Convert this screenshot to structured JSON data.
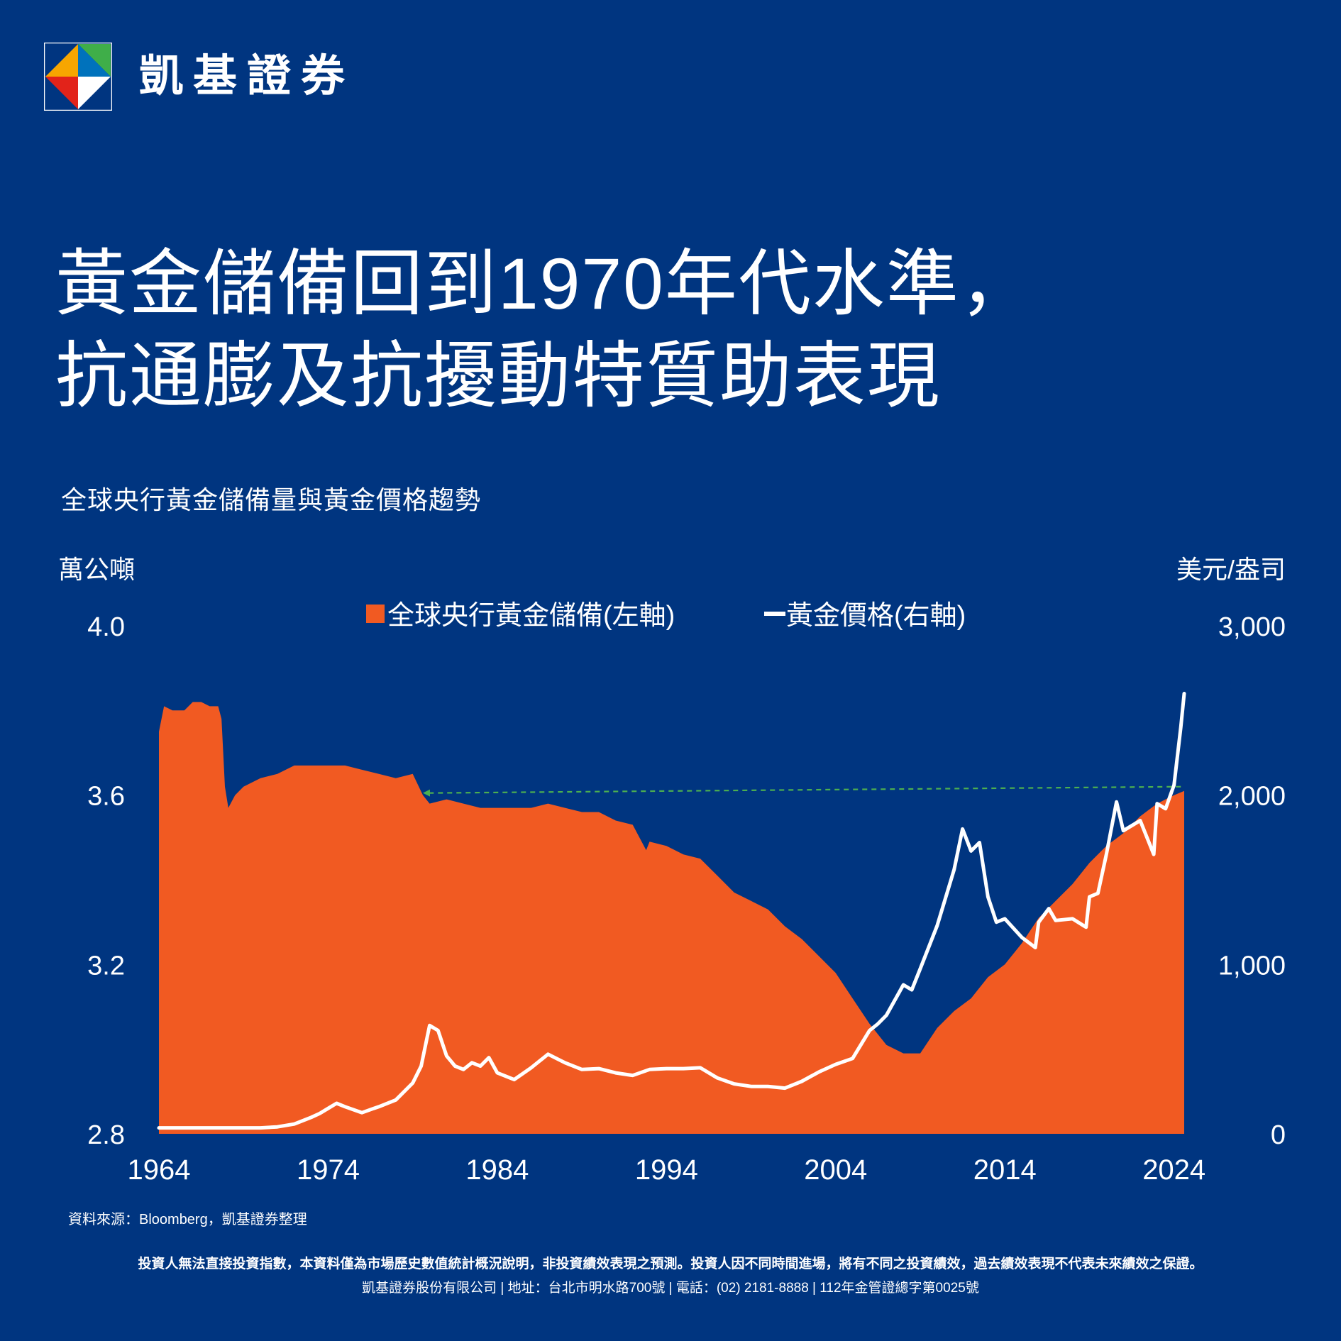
{
  "brand": {
    "name": "凱基證券",
    "logo_colors": [
      "#E2231A",
      "#F7A600",
      "#3FAE49",
      "#0072BC",
      "#FFFFFF"
    ]
  },
  "headline": {
    "line1": "黃金儲備回到1970年代水準，",
    "line2": "抗通膨及抗擾動特質助表現"
  },
  "chart_data": {
    "type": "area",
    "title": "全球央行黃金儲備量與黃金價格趨勢",
    "ylabel_left": "萬公噸",
    "ylabel_right": "美元/盎司",
    "ylim_left": [
      2.8,
      4.0
    ],
    "ylim_right": [
      0,
      3000
    ],
    "yticks_left": [
      "4.0",
      "3.6",
      "3.2",
      "2.8"
    ],
    "yticks_right": [
      "3,000",
      "2,000",
      "1,000",
      "0"
    ],
    "xlim": [
      1964,
      2024.6
    ],
    "xticks": [
      "1964",
      "1974",
      "1984",
      "1994",
      "2004",
      "2014",
      "2024"
    ],
    "legend_placement": "top-center",
    "colors": {
      "reserves": "#F15A22",
      "price": "#FFFFFF",
      "reference_line": "#4CAF50",
      "background": "#003580"
    },
    "series": [
      {
        "name": "全球央行黃金儲備(左軸)",
        "axis": "left",
        "style": "area",
        "x": [
          1964,
          1964.3,
          1964.8,
          1965.5,
          1966,
          1966.5,
          1967,
          1967.5,
          1967.7,
          1967.9,
          1968.1,
          1968.5,
          1969,
          1970,
          1971,
          1972,
          1973,
          1974,
          1975,
          1976,
          1977,
          1978,
          1979,
          1979.6,
          1980,
          1981,
          1982,
          1983,
          1984,
          1985,
          1986,
          1987,
          1988,
          1989,
          1990,
          1991,
          1992,
          1992.8,
          1993,
          1994,
          1995,
          1996,
          1997,
          1998,
          1999,
          2000,
          2001,
          2002,
          2003,
          2004,
          2005,
          2006,
          2007,
          2008,
          2009,
          2009.5,
          2010,
          2011,
          2012,
          2013,
          2014,
          2015,
          2016,
          2017,
          2018,
          2019,
          2020,
          2021,
          2022,
          2023,
          2024,
          2024.6
        ],
        "values": [
          3.75,
          3.81,
          3.8,
          3.8,
          3.82,
          3.82,
          3.81,
          3.81,
          3.78,
          3.62,
          3.57,
          3.6,
          3.62,
          3.64,
          3.65,
          3.67,
          3.67,
          3.67,
          3.67,
          3.66,
          3.65,
          3.64,
          3.65,
          3.6,
          3.58,
          3.59,
          3.58,
          3.57,
          3.57,
          3.57,
          3.57,
          3.58,
          3.57,
          3.56,
          3.56,
          3.54,
          3.53,
          3.47,
          3.49,
          3.48,
          3.46,
          3.45,
          3.41,
          3.37,
          3.35,
          3.33,
          3.29,
          3.26,
          3.22,
          3.18,
          3.12,
          3.06,
          3.01,
          2.99,
          2.99,
          3.02,
          3.05,
          3.09,
          3.12,
          3.17,
          3.2,
          3.25,
          3.31,
          3.35,
          3.39,
          3.44,
          3.48,
          3.51,
          3.55,
          3.58,
          3.6,
          3.61
        ]
      },
      {
        "name": "黃金價格(右軸)",
        "axis": "right",
        "style": "line",
        "x": [
          1964,
          1968,
          1970,
          1971,
          1972,
          1973,
          1973.5,
          1974,
          1974.5,
          1975,
          1976,
          1976.7,
          1977,
          1978,
          1979,
          1979.5,
          1980,
          1980.5,
          1981,
          1981.5,
          1982,
          1982.5,
          1983,
          1983.5,
          1984,
          1985,
          1986,
          1987,
          1988,
          1989,
          1990,
          1991,
          1992,
          1993,
          1994,
          1995,
          1996,
          1997,
          1998,
          1999,
          2000,
          2001,
          2002,
          2003,
          2004,
          2005,
          2006,
          2006.5,
          2007,
          2008,
          2008.5,
          2009,
          2010,
          2011,
          2011.5,
          2012,
          2012.5,
          2013,
          2013.5,
          2014,
          2015,
          2015.8,
          2016,
          2016.6,
          2017,
          2018,
          2018.8,
          2019,
          2019.5,
          2020,
          2020.6,
          2021,
          2022,
          2022.8,
          2023,
          2023.5,
          2024,
          2024.4,
          2024.6
        ],
        "values": [
          35,
          35,
          35,
          41,
          58,
          97,
          120,
          150,
          180,
          160,
          125,
          150,
          160,
          200,
          300,
          400,
          640,
          610,
          460,
          400,
          380,
          420,
          400,
          450,
          360,
          320,
          390,
          470,
          420,
          380,
          385,
          360,
          345,
          380,
          385,
          385,
          390,
          330,
          295,
          280,
          280,
          270,
          310,
          365,
          410,
          445,
          610,
          650,
          700,
          880,
          850,
          975,
          1230,
          1560,
          1800,
          1670,
          1720,
          1400,
          1250,
          1270,
          1160,
          1100,
          1250,
          1330,
          1260,
          1270,
          1220,
          1400,
          1420,
          1650,
          1960,
          1790,
          1850,
          1650,
          1950,
          1920,
          2060,
          2400,
          2600
        ]
      }
    ],
    "reference_line": {
      "style": "dashed-arrow",
      "from": {
        "x": 2024.4,
        "y": 3.62
      },
      "to": {
        "x": 1979.6,
        "y": 3.605
      }
    }
  },
  "footer": {
    "source": "資料來源：Bloomberg，凱基證券整理",
    "disclaimer": "投資人無法直接投資指數，本資料僅為市場歷史數值統計概況說明，非投資績效表現之預測。投資人因不同時間進場，將有不同之投資績效，過去績效表現不代表未來績效之保證。",
    "company": "凱基證券股份有限公司 | 地址：台北市明水路700號 | 電話：(02) 2181-8888 | 112年金管證總字第0025號"
  }
}
